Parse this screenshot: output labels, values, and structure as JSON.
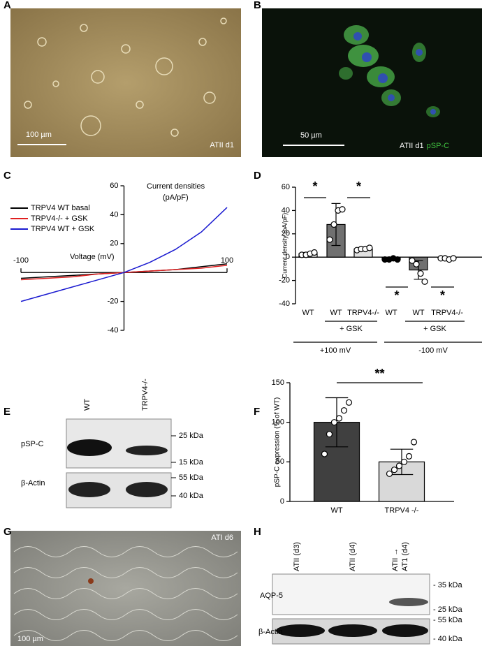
{
  "panel_labels": [
    "A",
    "B",
    "C",
    "D",
    "E",
    "F",
    "G",
    "H"
  ],
  "panel_a": {
    "scale_bar": "100 µm",
    "caption": "ATII d1"
  },
  "panel_b": {
    "scale_bar": "50 µm",
    "caption": "ATII d1",
    "marker": "pSP-C"
  },
  "chart_data": [
    {
      "type": "line",
      "xlabel": "Voltage (mV)",
      "ylabel": [
        "Current densities",
        "(pA/pF)"
      ],
      "x": [
        -100,
        -75,
        -50,
        -25,
        0,
        25,
        50,
        75,
        100
      ],
      "series": [
        {
          "name": "TRPV4 WT basal",
          "color": "#000000",
          "values": [
            -4,
            -3,
            -2,
            -1,
            0,
            1,
            2,
            4,
            6
          ]
        },
        {
          "name": "TRPV4-/- + GSK",
          "color": "#e02020",
          "values": [
            -5,
            -4,
            -3,
            -1,
            0,
            1,
            2,
            3,
            5
          ]
        },
        {
          "name": "TRPV4 WT + GSK",
          "color": "#1a1ad0",
          "values": [
            -20,
            -15,
            -10,
            -5,
            0,
            7,
            16,
            28,
            45
          ]
        }
      ],
      "xlim": [
        -100,
        100
      ],
      "xticks": [
        -100,
        100
      ],
      "ylim": [
        -40,
        60
      ],
      "yticks": [
        -40,
        -20,
        20,
        40,
        60
      ]
    },
    {
      "type": "bar",
      "ylabel": "Current density (pA/pF)",
      "categories": [
        "WT",
        "WT",
        "TRPV4-/-",
        "WT",
        "WT",
        "TRPV4-/-"
      ],
      "values": [
        3,
        28,
        7,
        -2,
        -11,
        -1
      ],
      "errors": [
        1,
        18,
        1,
        0.5,
        8,
        0.5
      ],
      "colors": [
        "#ffffff",
        "#707070",
        "#e0e0e0",
        "#ffffff",
        "#707070",
        "#e0e0e0"
      ],
      "points": [
        [
          2,
          2,
          3,
          4
        ],
        [
          15,
          28,
          40,
          41
        ],
        [
          6,
          7,
          7,
          8
        ],
        [
          -2,
          -2,
          -1,
          -2
        ],
        [
          -3,
          -6,
          -14,
          -21
        ],
        [
          -1,
          -1,
          -2,
          -1
        ]
      ],
      "point_colors": [
        "#ffffff",
        "#ffffff",
        "#ffffff",
        "#000000",
        "#ffffff",
        "#ffffff"
      ],
      "sub_groups": [
        "+ GSK",
        "+ GSK"
      ],
      "groups": [
        "+100 mV",
        "-100 mV"
      ],
      "annotations": [
        "*",
        "*",
        "*",
        "*"
      ],
      "ylim": [
        -40,
        60
      ],
      "yticks": [
        -40,
        -20,
        0,
        20,
        40,
        60
      ]
    },
    {
      "type": "bar",
      "ylabel": "pSP-C expression (% of WT)",
      "categories": [
        "WT",
        "TRPV4 -/-"
      ],
      "values": [
        100,
        50
      ],
      "errors": [
        31,
        16
      ],
      "colors": [
        "#404040",
        "#d9d9d9"
      ],
      "points": [
        [
          60,
          85,
          100,
          105,
          115,
          125
        ],
        [
          35,
          40,
          45,
          50,
          57,
          75
        ]
      ],
      "point_colors": [
        "#ffffff",
        "#ffffff"
      ],
      "annotations": [
        "**"
      ],
      "ylim": [
        0,
        150
      ],
      "yticks": [
        0,
        50,
        100,
        150
      ]
    }
  ],
  "panel_e": {
    "lanes": [
      "WT",
      "TRPV4-/-"
    ],
    "rows": [
      "pSP-C",
      "β-Actin"
    ],
    "markers": [
      "25 kDa",
      "15 kDa",
      "55 kDa",
      "40 kDa"
    ]
  },
  "panel_g": {
    "caption": "ATI d6",
    "scale_bar": "100 µm"
  },
  "panel_h": {
    "lanes": [
      "ATII (d3)",
      "ATII (d4)",
      [
        "ATII →",
        "AT1 (d4)"
      ]
    ],
    "rows": [
      "AQP-5",
      "β-Actin"
    ],
    "markers": [
      "- 35 kDa",
      "- 25 kDa",
      "- 55 kDa",
      "- 40 kDa"
    ]
  }
}
